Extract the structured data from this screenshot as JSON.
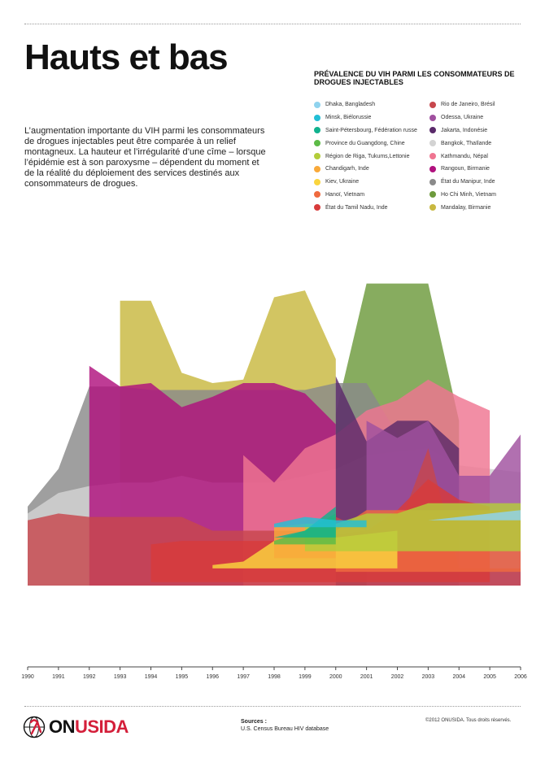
{
  "title": "Hauts et bas",
  "intro": "L’augmentation importante du VIH parmi les consommateurs de drogues injectables peut être comparée à un relief montagneux. La hauteur et l’irrégularité d’une cîme – lorsque l’épidémie est à son paroxysme – dépendent du moment et de la réalité du déploiement des services destinés aux consommateurs de drogues.",
  "legend": {
    "title": "PRÉVALENCE DU VIH PARMI LES CONSOMMATEURS DE DROGUES INJECTABLES",
    "column1": [
      {
        "label": "Dhaka, Bangladesh",
        "color": "#8fd3ee"
      },
      {
        "label": "Minsk, Biélorussie",
        "color": "#22bfd6"
      },
      {
        "label": "Saint-Pétersbourg, Fédération russe",
        "color": "#11b28e"
      },
      {
        "label": "Province du Guangdong, Chine",
        "color": "#5dbb47"
      },
      {
        "label": "Région de Riga, Tukums,Lettonie",
        "color": "#b3cd3a"
      },
      {
        "label": "Chandigarh, Inde",
        "color": "#f9a93a"
      },
      {
        "label": "Kiev, Ukraine",
        "color": "#fad53e"
      },
      {
        "label": "Hanoï, Vietnam",
        "color": "#ef6a3f"
      },
      {
        "label": "État du Tamil Nadu, Inde",
        "color": "#d83b3b"
      }
    ],
    "column2": [
      {
        "label": "Rio de Janeiro, Brésil",
        "color": "#c7474d"
      },
      {
        "label": "Odessa, Ukraine",
        "color": "#a0509f"
      },
      {
        "label": "Jakarta, Indonésie",
        "color": "#5a2a6a"
      },
      {
        "label": "Bangkok, Thaïlande",
        "color": "#d3d3d3"
      },
      {
        "label": "Kathmandu, Népal",
        "color": "#ef7591"
      },
      {
        "label": "Rangoun, Birmanie",
        "color": "#b0117e"
      },
      {
        "label": "État du Manipur, Inde",
        "color": "#8a8a8a"
      },
      {
        "label": "Ho Chi Minh, Vietnam",
        "color": "#6d9a3c"
      },
      {
        "label": "Mandalay, Birmanie",
        "color": "#c8b840"
      }
    ]
  },
  "chart_data": {
    "type": "area",
    "title": "PRÉVALENCE DU VIH PARMI LES CONSOMMATEURS DE DROGUES INJECTABLES",
    "xlabel": "",
    "ylabel": "",
    "x": [
      1990,
      1991,
      1992,
      1993,
      1994,
      1995,
      1996,
      1997,
      1998,
      1999,
      2000,
      2001,
      2002,
      2003,
      2004,
      2005,
      2006
    ],
    "xlim": [
      1990,
      2006
    ],
    "ylim": [
      0,
      100
    ],
    "yaxis_shown": false,
    "grid": false,
    "legend_position": "top-right",
    "series": [
      {
        "name": "Mandalay, Birmanie",
        "color": "#c8b840",
        "values": [
          null,
          null,
          null,
          83,
          83,
          62,
          59,
          60,
          84,
          86,
          66,
          null,
          null,
          null,
          null,
          null,
          null
        ]
      },
      {
        "name": "Ho Chi Minh, Vietnam",
        "color": "#6d9a3c",
        "values": [
          null,
          null,
          null,
          null,
          null,
          null,
          null,
          null,
          null,
          null,
          50,
          88,
          88,
          88,
          48,
          null,
          null
        ]
      },
      {
        "name": "État du Manipur, Inde",
        "color": "#8a8a8a",
        "values": [
          23,
          34,
          58,
          58,
          57,
          57,
          57,
          57,
          57,
          57,
          59,
          59,
          44,
          35,
          null,
          null,
          null
        ]
      },
      {
        "name": "Bangkok, Thaïlande",
        "color": "#d3d3d3",
        "values": [
          21,
          27,
          29,
          30,
          30,
          32,
          30,
          30,
          30,
          32,
          34,
          38,
          39,
          40,
          35,
          34,
          33
        ]
      },
      {
        "name": "Rangoun, Birmanie",
        "color": "#b0117e",
        "values": [
          null,
          null,
          64,
          58,
          59,
          52,
          55,
          59,
          59,
          56,
          47,
          null,
          null,
          null,
          null,
          null,
          null
        ]
      },
      {
        "name": "Kathmandu, Népal",
        "color": "#ef7591",
        "values": [
          null,
          null,
          null,
          null,
          null,
          null,
          null,
          38,
          30,
          40,
          44,
          51,
          54,
          60,
          55,
          51,
          null
        ]
      },
      {
        "name": "Jakarta, Indonésie",
        "color": "#5a2a6a",
        "values": [
          null,
          null,
          null,
          null,
          null,
          null,
          null,
          null,
          null,
          null,
          61,
          42,
          48,
          48,
          40,
          null,
          null
        ]
      },
      {
        "name": "Odessa, Ukraine",
        "color": "#a0509f",
        "values": [
          null,
          null,
          null,
          null,
          null,
          null,
          null,
          null,
          null,
          null,
          null,
          48,
          43,
          48,
          32,
          32,
          44
        ]
      },
      {
        "name": "Rio de Janeiro, Brésil",
        "color": "#c7474d",
        "values": [
          19,
          21,
          20,
          20,
          20,
          20,
          16,
          16,
          16,
          16,
          20,
          16,
          16,
          40,
          5,
          5,
          5
        ]
      },
      {
        "name": "État du Tamil Nadu, Inde",
        "color": "#d83b3b",
        "values": [
          null,
          null,
          null,
          null,
          11,
          12,
          12,
          12,
          12,
          12,
          14,
          15,
          21,
          30,
          24,
          22,
          null
        ]
      },
      {
        "name": "Hanoï, Vietnam",
        "color": "#ef6a3f",
        "values": [
          null,
          null,
          null,
          null,
          null,
          null,
          null,
          null,
          null,
          null,
          12,
          18,
          18,
          18,
          18,
          18,
          18
        ]
      },
      {
        "name": "Kiev, Ukraine",
        "color": "#fad53e",
        "values": [
          null,
          null,
          null,
          null,
          null,
          null,
          1,
          2,
          8,
          10,
          9,
          10,
          11,
          null,
          null,
          null,
          null
        ]
      },
      {
        "name": "Chandigarh, Inde",
        "color": "#f9a93a",
        "values": [
          null,
          null,
          null,
          null,
          null,
          null,
          null,
          null,
          9,
          10,
          10,
          null,
          null,
          null,
          null,
          null,
          null
        ]
      },
      {
        "name": "Région de Riga, Tukums,Lettonie",
        "color": "#b3cd3a",
        "values": [
          null,
          null,
          null,
          null,
          null,
          null,
          null,
          null,
          null,
          8,
          8,
          11,
          11,
          14,
          14,
          14,
          14
        ]
      },
      {
        "name": "Province du Guangdong, Chine",
        "color": "#5dbb47",
        "values": [
          null,
          null,
          null,
          null,
          null,
          null,
          null,
          null,
          1,
          4,
          9,
          null,
          null,
          null,
          null,
          null,
          null
        ]
      },
      {
        "name": "Saint-Pétersbourg, Fédération russe",
        "color": "#11b28e",
        "values": [
          null,
          null,
          null,
          null,
          null,
          null,
          null,
          null,
          0,
          2,
          9,
          null,
          null,
          null,
          null,
          null,
          null
        ]
      },
      {
        "name": "Minsk, Biélorussie",
        "color": "#22bfd6",
        "values": [
          null,
          null,
          null,
          null,
          null,
          null,
          null,
          null,
          1,
          3,
          2,
          2,
          null,
          null,
          null,
          null,
          null
        ]
      },
      {
        "name": "Dhaka, Bangladesh",
        "color": "#8fd3ee",
        "values": [
          null,
          null,
          null,
          null,
          null,
          null,
          null,
          null,
          null,
          null,
          0,
          0,
          0,
          0,
          1,
          2,
          3
        ]
      }
    ]
  },
  "footer": {
    "logo_prefix": "ON",
    "logo_suffix": "USIDA",
    "sources_title": "Sources :",
    "sources_text": "U.S. Census Bureau HIV database",
    "copyright": "©2012 ONUSIDA. Tous droits réservés."
  }
}
